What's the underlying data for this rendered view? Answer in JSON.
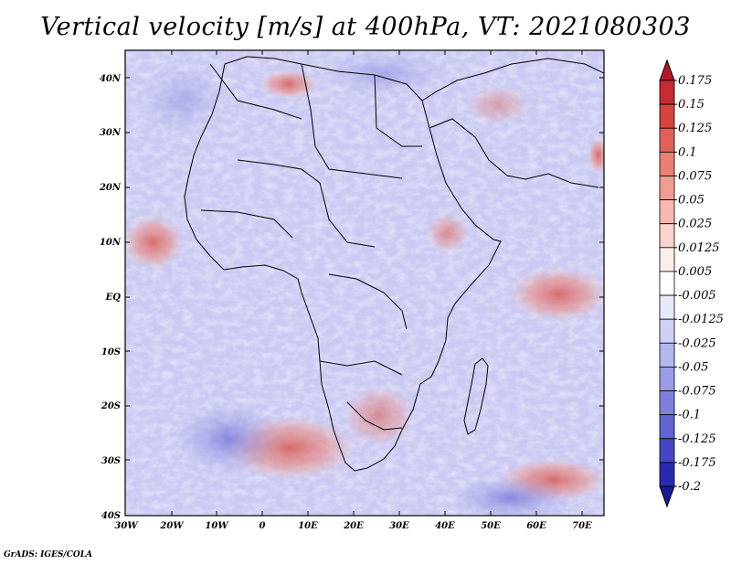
{
  "title": "Vertical velocity [m/s] at 400hPa, VT: 2021080303",
  "credit": "GrADS: IGES/COLA",
  "map": {
    "lat_labels": [
      "40N",
      "30N",
      "20N",
      "10N",
      "EQ",
      "10S",
      "20S",
      "30S",
      "40S"
    ],
    "lon_labels": [
      "30W",
      "20W",
      "10W",
      "0",
      "10E",
      "20E",
      "30E",
      "40E",
      "50E",
      "60E",
      "70E"
    ]
  },
  "colorbar": {
    "labels": [
      "0.175",
      "0.15",
      "0.125",
      "0.1",
      "0.075",
      "0.05",
      "0.025",
      "0.0125",
      "0.005",
      "-0.005",
      "-0.0125",
      "-0.025",
      "-0.05",
      "-0.075",
      "-0.1",
      "-0.125",
      "-0.175",
      "-0.2"
    ],
    "colors": [
      "#b2182b",
      "#c62a33",
      "#d6443f",
      "#e0615a",
      "#e97f75",
      "#f09c93",
      "#f5b9b0",
      "#f9d3cd",
      "#fdeeea",
      "#ffffff",
      "#e8e8fb",
      "#d0d0f5",
      "#b6b6ee",
      "#9b9be6",
      "#7f7fdd",
      "#6363d2",
      "#4646c4",
      "#2a2ab0",
      "#1a1a99"
    ]
  }
}
